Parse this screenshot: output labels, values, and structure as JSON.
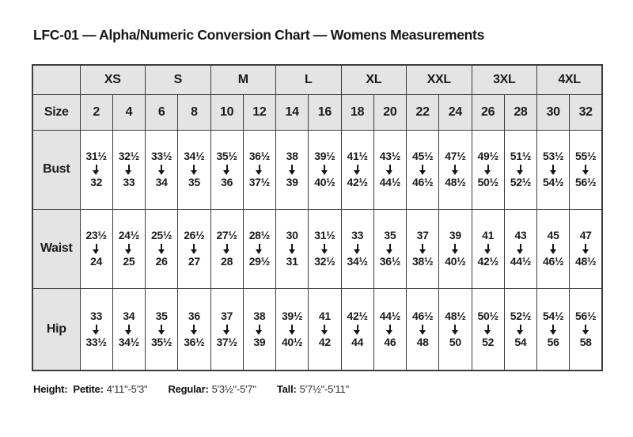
{
  "title": "LFC-01 — Alpha/Numeric Conversion Chart — Womens Measurements",
  "colors": {
    "header_fill": "#e4e4e4",
    "border": "#3d3d3d",
    "text": "#161616"
  },
  "chart_data": {
    "type": "table",
    "title": "LFC-01 — Alpha/Numeric Conversion Chart — Womens Measurements",
    "alpha_sizes": [
      "XS",
      "S",
      "M",
      "L",
      "XL",
      "XXL",
      "3XL",
      "4XL"
    ],
    "size_label": "Size",
    "numeric_sizes": [
      "2",
      "4",
      "6",
      "8",
      "10",
      "12",
      "14",
      "16",
      "18",
      "20",
      "22",
      "24",
      "26",
      "28",
      "30",
      "32"
    ],
    "measurement_rows": [
      {
        "label": "Bust",
        "cells": [
          {
            "from": "31½",
            "to": "32"
          },
          {
            "from": "32½",
            "to": "33"
          },
          {
            "from": "33½",
            "to": "34"
          },
          {
            "from": "34½",
            "to": "35"
          },
          {
            "from": "35½",
            "to": "36"
          },
          {
            "from": "36½",
            "to": "37½"
          },
          {
            "from": "38",
            "to": "39"
          },
          {
            "from": "39½",
            "to": "40½"
          },
          {
            "from": "41½",
            "to": "42½"
          },
          {
            "from": "43½",
            "to": "44½"
          },
          {
            "from": "45½",
            "to": "46½"
          },
          {
            "from": "47½",
            "to": "48½"
          },
          {
            "from": "49½",
            "to": "50½"
          },
          {
            "from": "51½",
            "to": "52½"
          },
          {
            "from": "53½",
            "to": "54½"
          },
          {
            "from": "55½",
            "to": "56½"
          }
        ]
      },
      {
        "label": "Waist",
        "cells": [
          {
            "from": "23½",
            "to": "24"
          },
          {
            "from": "24½",
            "to": "25"
          },
          {
            "from": "25½",
            "to": "26"
          },
          {
            "from": "26½",
            "to": "27"
          },
          {
            "from": "27½",
            "to": "28"
          },
          {
            "from": "28½",
            "to": "29½"
          },
          {
            "from": "30",
            "to": "31"
          },
          {
            "from": "31½",
            "to": "32½"
          },
          {
            "from": "33",
            "to": "34½"
          },
          {
            "from": "35",
            "to": "36½"
          },
          {
            "from": "37",
            "to": "38½"
          },
          {
            "from": "39",
            "to": "40½"
          },
          {
            "from": "41",
            "to": "42½"
          },
          {
            "from": "43",
            "to": "44½"
          },
          {
            "from": "45",
            "to": "46½"
          },
          {
            "from": "47",
            "to": "48½"
          }
        ]
      },
      {
        "label": "Hip",
        "cells": [
          {
            "from": "33",
            "to": "33½"
          },
          {
            "from": "34",
            "to": "34½"
          },
          {
            "from": "35",
            "to": "35½"
          },
          {
            "from": "36",
            "to": "36½"
          },
          {
            "from": "37",
            "to": "37½"
          },
          {
            "from": "38",
            "to": "39"
          },
          {
            "from": "39½",
            "to": "40½"
          },
          {
            "from": "41",
            "to": "42"
          },
          {
            "from": "42½",
            "to": "44"
          },
          {
            "from": "44½",
            "to": "46"
          },
          {
            "from": "46½",
            "to": "48"
          },
          {
            "from": "48½",
            "to": "50"
          },
          {
            "from": "50½",
            "to": "52"
          },
          {
            "from": "52½",
            "to": "54"
          },
          {
            "from": "54½",
            "to": "56"
          },
          {
            "from": "56½",
            "to": "58"
          }
        ]
      }
    ]
  },
  "footer": {
    "height_label": "Height:",
    "segments": [
      {
        "label": "Petite:",
        "value": "4'11\"-5'3\""
      },
      {
        "label": "Regular:",
        "value": "5'3½\"-5'7\""
      },
      {
        "label": "Tall:",
        "value": "5'7½\"-5'11\""
      }
    ]
  }
}
